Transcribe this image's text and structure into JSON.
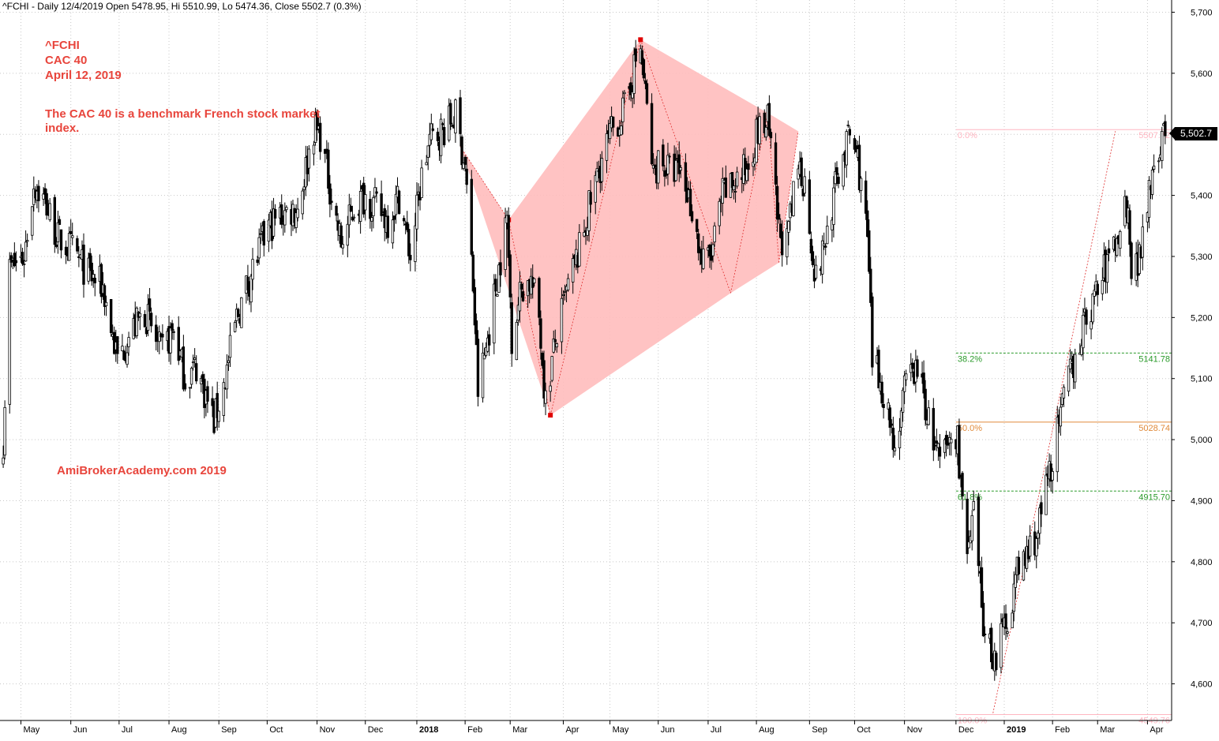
{
  "header": "^FCHI - Daily 12/4/2019 Open 5478.95, Hi 5510.99, Lo 5474.36, Close 5502.7 (0.3%)",
  "notes": {
    "symbol": "^FCHI",
    "name": "CAC 40",
    "date": "April 12, 2019",
    "description": "The CAC 40  is a benchmark French stock market index.",
    "watermark": "AmiBrokerAcademy.com  2019"
  },
  "last_price_label": "5,502.7",
  "colors": {
    "candle": "#000000",
    "pattern_fill": "#ffbcbc",
    "pattern_line": "#e03030",
    "pivot": "#e00000",
    "fib_pink": "#ffb6c1",
    "fib_green": "#2a9a2a",
    "fib_orange": "#e08a3a",
    "note_text": "#e8453c",
    "grid": "#c8c8c8"
  },
  "chart_data": {
    "type": "candlestick",
    "ylim": [
      4540,
      5720
    ],
    "yticks": [
      4600,
      4700,
      4800,
      4900,
      5000,
      5100,
      5200,
      5300,
      5400,
      5500,
      5600,
      5700
    ],
    "ytick_labels": [
      "4,600",
      "4,700",
      "4,800",
      "4,900",
      "5,000",
      "5,100",
      "5,200",
      "5,300",
      "5,400",
      "5,500",
      "5,600",
      "5,700"
    ],
    "x_axis_labels": [
      {
        "label": "May",
        "date": "2017-05-01",
        "bold": false
      },
      {
        "label": "Jun",
        "date": "2017-06-01",
        "bold": false
      },
      {
        "label": "Jul",
        "date": "2017-07-01",
        "bold": false
      },
      {
        "label": "Aug",
        "date": "2017-08-01",
        "bold": false
      },
      {
        "label": "Sep",
        "date": "2017-09-01",
        "bold": false
      },
      {
        "label": "Oct",
        "date": "2017-10-01",
        "bold": false
      },
      {
        "label": "Nov",
        "date": "2017-11-01",
        "bold": false
      },
      {
        "label": "Dec",
        "date": "2017-12-01",
        "bold": false
      },
      {
        "label": "2018",
        "date": "2018-01-02",
        "bold": true
      },
      {
        "label": "Feb",
        "date": "2018-02-01",
        "bold": false
      },
      {
        "label": "Mar",
        "date": "2018-03-01",
        "bold": false
      },
      {
        "label": "Apr",
        "date": "2018-04-03",
        "bold": false
      },
      {
        "label": "May",
        "date": "2018-05-02",
        "bold": false
      },
      {
        "label": "Jun",
        "date": "2018-06-01",
        "bold": false
      },
      {
        "label": "Jul",
        "date": "2018-07-02",
        "bold": false
      },
      {
        "label": "Aug",
        "date": "2018-08-01",
        "bold": false
      },
      {
        "label": "Sep",
        "date": "2018-09-03",
        "bold": false
      },
      {
        "label": "Oct",
        "date": "2018-10-01",
        "bold": false
      },
      {
        "label": "Nov",
        "date": "2018-11-01",
        "bold": false
      },
      {
        "label": "Dec",
        "date": "2018-12-03",
        "bold": false
      },
      {
        "label": "2019",
        "date": "2019-01-02",
        "bold": true
      },
      {
        "label": "Feb",
        "date": "2019-02-01",
        "bold": false
      },
      {
        "label": "Mar",
        "date": "2019-03-01",
        "bold": false
      },
      {
        "label": "Apr",
        "date": "2019-04-01",
        "bold": false
      }
    ],
    "price_path": [
      [
        "2017-04-20",
        5000
      ],
      [
        "2017-04-24",
        5280
      ],
      [
        "2017-05-03",
        5300
      ],
      [
        "2017-05-09",
        5420
      ],
      [
        "2017-05-16",
        5390
      ],
      [
        "2017-05-24",
        5330
      ],
      [
        "2017-06-02",
        5310
      ],
      [
        "2017-06-12",
        5270
      ],
      [
        "2017-06-21",
        5250
      ],
      [
        "2017-06-30",
        5130
      ],
      [
        "2017-07-07",
        5170
      ],
      [
        "2017-07-17",
        5210
      ],
      [
        "2017-07-27",
        5140
      ],
      [
        "2017-08-04",
        5180
      ],
      [
        "2017-08-11",
        5100
      ],
      [
        "2017-08-18",
        5120
      ],
      [
        "2017-08-29",
        5030
      ],
      [
        "2017-09-05",
        5100
      ],
      [
        "2017-09-12",
        5200
      ],
      [
        "2017-09-22",
        5280
      ],
      [
        "2017-10-02",
        5350
      ],
      [
        "2017-10-11",
        5370
      ],
      [
        "2017-10-20",
        5380
      ],
      [
        "2017-10-30",
        5510
      ],
      [
        "2017-11-03",
        5500
      ],
      [
        "2017-11-10",
        5400
      ],
      [
        "2017-11-16",
        5320
      ],
      [
        "2017-11-24",
        5380
      ],
      [
        "2017-12-01",
        5400
      ],
      [
        "2017-12-08",
        5380
      ],
      [
        "2017-12-15",
        5360
      ],
      [
        "2017-12-22",
        5400
      ],
      [
        "2017-12-29",
        5300
      ],
      [
        "2018-01-05",
        5430
      ],
      [
        "2018-01-10",
        5490
      ],
      [
        "2018-01-19",
        5510
      ],
      [
        "2018-01-26",
        5530
      ],
      [
        "2018-02-01",
        5450
      ],
      [
        "2018-02-06",
        5250
      ],
      [
        "2018-02-09",
        5080
      ],
      [
        "2018-02-14",
        5150
      ],
      [
        "2018-02-20",
        5250
      ],
      [
        "2018-02-27",
        5360
      ],
      [
        "2018-03-02",
        5170
      ],
      [
        "2018-03-08",
        5250
      ],
      [
        "2018-03-14",
        5260
      ],
      [
        "2018-03-19",
        5200
      ],
      [
        "2018-03-23",
        5060
      ],
      [
        "2018-03-29",
        5160
      ],
      [
        "2018-04-06",
        5250
      ],
      [
        "2018-04-13",
        5310
      ],
      [
        "2018-04-20",
        5390
      ],
      [
        "2018-04-27",
        5460
      ],
      [
        "2018-05-04",
        5510
      ],
      [
        "2018-05-11",
        5540
      ],
      [
        "2018-05-18",
        5620
      ],
      [
        "2018-05-21",
        5640
      ],
      [
        "2018-05-25",
        5540
      ],
      [
        "2018-05-29",
        5430
      ],
      [
        "2018-06-01",
        5460
      ],
      [
        "2018-06-08",
        5440
      ],
      [
        "2018-06-15",
        5440
      ],
      [
        "2018-06-22",
        5380
      ],
      [
        "2018-06-28",
        5290
      ],
      [
        "2018-07-04",
        5300
      ],
      [
        "2018-07-11",
        5400
      ],
      [
        "2018-07-18",
        5420
      ],
      [
        "2018-07-25",
        5440
      ],
      [
        "2018-08-01",
        5500
      ],
      [
        "2018-08-08",
        5520
      ],
      [
        "2018-08-15",
        5340
      ],
      [
        "2018-08-20",
        5320
      ],
      [
        "2018-08-27",
        5450
      ],
      [
        "2018-08-31",
        5420
      ],
      [
        "2018-09-07",
        5260
      ],
      [
        "2018-09-14",
        5340
      ],
      [
        "2018-09-21",
        5440
      ],
      [
        "2018-09-28",
        5500
      ],
      [
        "2018-10-03",
        5460
      ],
      [
        "2018-10-09",
        5330
      ],
      [
        "2018-10-12",
        5130
      ],
      [
        "2018-10-19",
        5080
      ],
      [
        "2018-10-26",
        4990
      ],
      [
        "2018-11-02",
        5090
      ],
      [
        "2018-11-09",
        5120
      ],
      [
        "2018-11-16",
        5030
      ],
      [
        "2018-11-23",
        4960
      ],
      [
        "2018-11-30",
        5000
      ],
      [
        "2018-12-04",
        5000
      ],
      [
        "2018-12-10",
        4800
      ],
      [
        "2018-12-14",
        4870
      ],
      [
        "2018-12-20",
        4700
      ],
      [
        "2018-12-27",
        4640
      ],
      [
        "2019-01-03",
        4700
      ],
      [
        "2019-01-10",
        4780
      ],
      [
        "2019-01-16",
        4810
      ],
      [
        "2019-01-23",
        4850
      ],
      [
        "2019-01-31",
        4960
      ],
      [
        "2019-02-07",
        5050
      ],
      [
        "2019-02-14",
        5130
      ],
      [
        "2019-02-21",
        5190
      ],
      [
        "2019-02-28",
        5240
      ],
      [
        "2019-03-07",
        5290
      ],
      [
        "2019-03-13",
        5330
      ],
      [
        "2019-03-20",
        5400
      ],
      [
        "2019-03-22",
        5270
      ],
      [
        "2019-03-27",
        5300
      ],
      [
        "2019-04-02",
        5420
      ],
      [
        "2019-04-05",
        5460
      ],
      [
        "2019-04-12",
        5502.7
      ]
    ],
    "pattern": {
      "points": [
        [
          "2018-01-29",
          5480
        ],
        [
          "2018-02-28",
          5360
        ],
        [
          "2018-03-26",
          5040
        ],
        [
          "2018-05-21",
          5655
        ],
        [
          "2018-07-16",
          5240
        ],
        [
          "2018-08-08",
          5535
        ],
        [
          "2018-08-15",
          5290
        ],
        [
          "2018-08-27",
          5505
        ]
      ],
      "pivots": [
        [
          "2018-02-28",
          5360
        ],
        [
          "2018-03-26",
          5040
        ],
        [
          "2018-05-21",
          5655
        ]
      ]
    },
    "fibonacci": {
      "levels": [
        {
          "label": "0.0%",
          "value": 5507.72,
          "value_label": "5507.72",
          "color": "#ffb6c1",
          "dashed": false
        },
        {
          "label": "38.2%",
          "value": 5141.78,
          "value_label": "5141.78",
          "color": "#2a9a2a",
          "dashed": true
        },
        {
          "label": "50.0%",
          "value": 5028.74,
          "value_label": "5028.74",
          "color": "#e08a3a",
          "dashed": false
        },
        {
          "label": "61.8%",
          "value": 4915.7,
          "value_label": "4915.70",
          "color": "#2a9a2a",
          "dashed": true
        },
        {
          "label": "100.0%",
          "value": 4549.76,
          "value_label": "4549.76",
          "color": "#ffb6c1",
          "dashed": false
        }
      ],
      "start_date": "2018-12-03",
      "end_date": "2019-04-18"
    },
    "trendline": [
      [
        "2018-12-26",
        4552
      ],
      [
        "2019-03-12",
        5505
      ]
    ]
  }
}
